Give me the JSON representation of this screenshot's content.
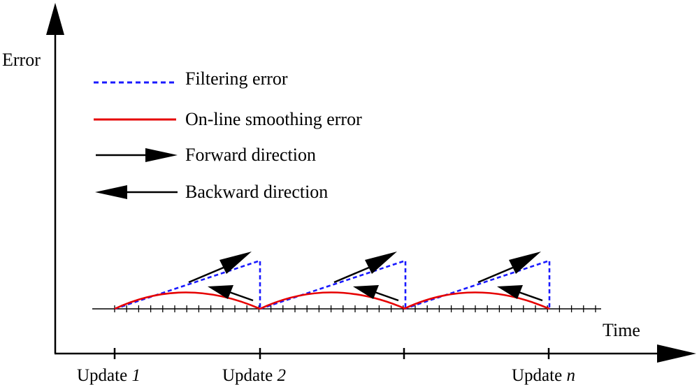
{
  "axes": {
    "y_label": "Error",
    "x_label": "Time"
  },
  "legend": [
    {
      "key": "filtering",
      "label": "Filtering error",
      "style": "dashed",
      "color": "#1a1aff"
    },
    {
      "key": "smoothing",
      "label": "On-line smoothing error",
      "style": "solid",
      "color": "#e60000"
    },
    {
      "key": "forward",
      "label": "Forward direction",
      "style": "arrow-right",
      "color": "#000000"
    },
    {
      "key": "backward",
      "label": "Backward direction",
      "style": "arrow-left",
      "color": "#000000"
    }
  ],
  "updates": [
    {
      "prefix": "Update ",
      "suffix": "1"
    },
    {
      "prefix": "Update ",
      "suffix": "2"
    },
    {
      "prefix": "",
      "suffix": ""
    },
    {
      "prefix": "Update ",
      "suffix": "n"
    }
  ],
  "colors": {
    "axis": "#000000",
    "filtering": "#1a1aff",
    "smoothing": "#e60000",
    "arrow": "#000000"
  }
}
